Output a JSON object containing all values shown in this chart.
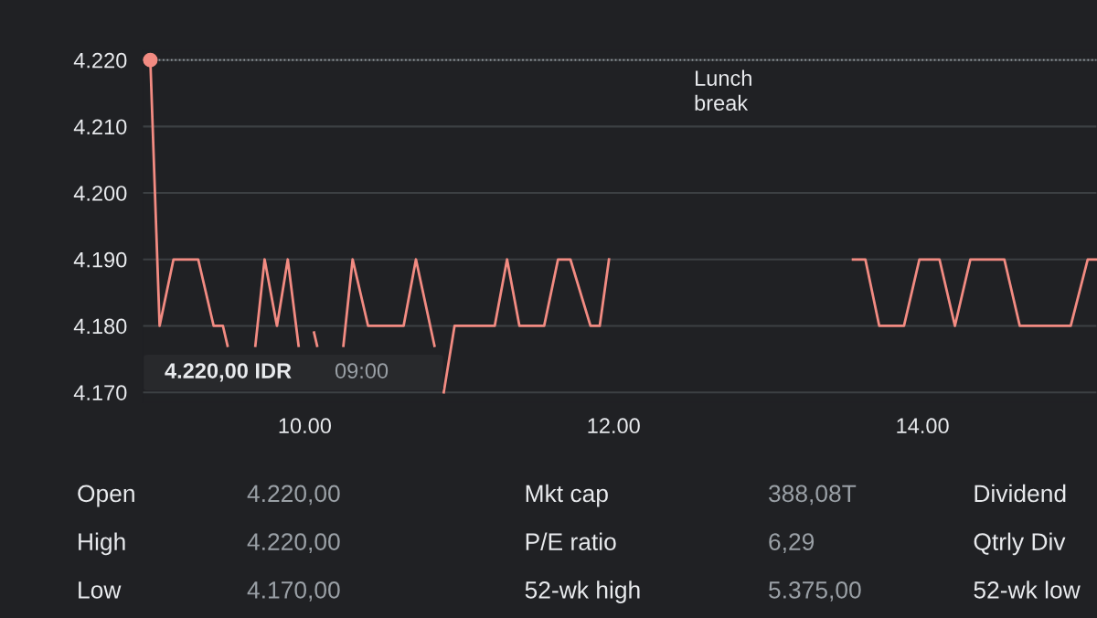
{
  "chart_data": {
    "type": "line",
    "x": [
      9.0,
      9.06,
      9.15,
      9.31,
      9.41,
      9.47,
      9.5,
      9.66,
      9.68,
      9.74,
      9.82,
      9.89,
      9.96,
      10.0,
      10.06,
      10.08,
      10.12,
      10.25,
      10.31,
      10.41,
      10.64,
      10.72,
      10.84,
      10.87,
      10.9,
      10.97,
      11.01,
      11.23,
      11.31,
      11.39,
      11.55,
      11.64,
      11.72,
      11.85,
      11.91,
      11.97,
      12.5,
      13.55,
      13.63,
      13.72,
      13.88,
      13.98,
      14.11,
      14.21,
      14.31,
      14.53,
      14.63,
      14.96,
      15.07,
      15.13
    ],
    "series": [
      {
        "color": "#f28b82",
        "values": [
          4220,
          4180,
          4190,
          4190,
          4180,
          4180,
          4177,
          null,
          4177,
          4190,
          4180,
          4190,
          4177,
          null,
          4179,
          4177,
          null,
          4177,
          4190,
          4180,
          4180,
          4190,
          4177,
          null,
          4170,
          4180,
          4180,
          4180,
          4190,
          4180,
          4180,
          4190,
          4190,
          4180,
          4180,
          4190,
          null,
          4190,
          4190,
          4180,
          4180,
          4190,
          4190,
          4180,
          4190,
          4190,
          4180,
          4180,
          4190,
          4190
        ]
      },
      {
        "type": "scatter",
        "color": "#f28b82",
        "marker": "circle",
        "x": [
          9.0
        ],
        "values": [
          4220
        ]
      }
    ],
    "xlim": [
      8.95,
      15.13
    ],
    "xticks": [
      {
        "value": 10,
        "label": "10.00"
      },
      {
        "value": 12,
        "label": "12.00"
      },
      {
        "value": 14,
        "label": "14.00"
      }
    ],
    "ylim": [
      4168.5,
      4221.5
    ],
    "yticks": [
      {
        "value": 4170,
        "label": "4.170"
      },
      {
        "value": 4180,
        "label": "4.180"
      },
      {
        "value": 4190,
        "label": "4.190"
      },
      {
        "value": 4200,
        "label": "4.200"
      },
      {
        "value": 4210,
        "label": "4.210"
      },
      {
        "value": 4220,
        "label": "4.220"
      }
    ],
    "ref_lines": [
      {
        "axis": "y",
        "value": 4220,
        "color": "#9aa0a6",
        "line_style": "dotted"
      }
    ],
    "grid": "y",
    "marker": "none",
    "line_style": "solid",
    "annotations": [
      "Lunch break",
      "4.220,00 IDR",
      "09:00",
      "Open",
      "4.220,00",
      "Mkt cap",
      "388,08T",
      "Dividend",
      "High",
      "4.220,00",
      "P/E ratio",
      "6,29",
      "Qtrly Div",
      "Low",
      "4.170,00",
      "52-wk high",
      "5.375,00",
      "52-wk low"
    ]
  }
}
